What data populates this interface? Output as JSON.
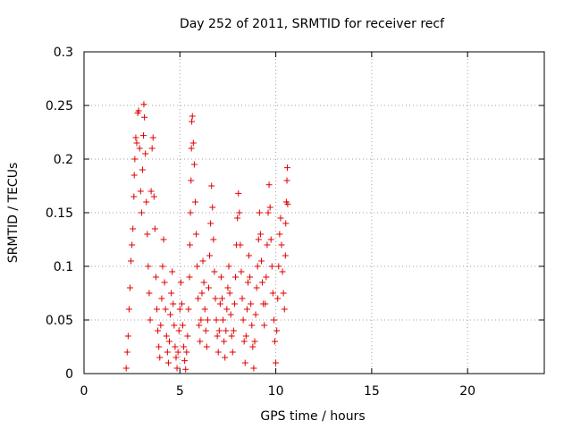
{
  "chart_data": {
    "type": "scatter",
    "title": "Day 252 of 2011, SRMTID for receiver recf",
    "xlabel": "GPS time / hours",
    "ylabel": "SRMTID / TECUs",
    "xlim": [
      0,
      24
    ],
    "ylim": [
      0,
      0.3
    ],
    "xticks": [
      0,
      5,
      10,
      15,
      20
    ],
    "xtick_labels": [
      "0",
      "5",
      "10",
      "15",
      "20"
    ],
    "yticks": [
      0,
      0.05,
      0.1,
      0.15,
      0.2,
      0.25,
      0.3
    ],
    "ytick_labels": [
      "0",
      "0.05",
      "0.1",
      "0.15",
      "0.2",
      "0.25",
      "0.3"
    ],
    "grid": true,
    "legend": "none",
    "marker": "+",
    "series": [
      {
        "color": "#e00000",
        "points": [
          [
            2.2,
            0.005
          ],
          [
            2.25,
            0.02
          ],
          [
            2.3,
            0.035
          ],
          [
            2.35,
            0.06
          ],
          [
            2.4,
            0.08
          ],
          [
            2.45,
            0.105
          ],
          [
            2.5,
            0.12
          ],
          [
            2.55,
            0.135
          ],
          [
            2.6,
            0.165
          ],
          [
            2.62,
            0.185
          ],
          [
            2.65,
            0.2
          ],
          [
            2.7,
            0.22
          ],
          [
            2.75,
            0.215
          ],
          [
            2.8,
            0.243
          ],
          [
            2.85,
            0.245
          ],
          [
            2.9,
            0.21
          ],
          [
            2.95,
            0.17
          ],
          [
            3.0,
            0.15
          ],
          [
            3.05,
            0.19
          ],
          [
            3.1,
            0.222
          ],
          [
            3.12,
            0.251
          ],
          [
            3.15,
            0.239
          ],
          [
            3.2,
            0.205
          ],
          [
            3.25,
            0.16
          ],
          [
            3.3,
            0.13
          ],
          [
            3.35,
            0.1
          ],
          [
            3.4,
            0.075
          ],
          [
            3.45,
            0.05
          ],
          [
            3.5,
            0.17
          ],
          [
            3.55,
            0.21
          ],
          [
            3.6,
            0.22
          ],
          [
            3.65,
            0.165
          ],
          [
            3.7,
            0.135
          ],
          [
            3.75,
            0.09
          ],
          [
            3.8,
            0.06
          ],
          [
            3.85,
            0.04
          ],
          [
            3.9,
            0.025
          ],
          [
            3.95,
            0.015
          ],
          [
            4.0,
            0.045
          ],
          [
            4.05,
            0.07
          ],
          [
            4.1,
            0.1
          ],
          [
            4.15,
            0.125
          ],
          [
            4.2,
            0.085
          ],
          [
            4.25,
            0.06
          ],
          [
            4.3,
            0.035
          ],
          [
            4.35,
            0.02
          ],
          [
            4.4,
            0.01
          ],
          [
            4.45,
            0.03
          ],
          [
            4.5,
            0.055
          ],
          [
            4.55,
            0.075
          ],
          [
            4.6,
            0.095
          ],
          [
            4.65,
            0.065
          ],
          [
            4.7,
            0.045
          ],
          [
            4.75,
            0.025
          ],
          [
            4.8,
            0.015
          ],
          [
            4.85,
            0.005
          ],
          [
            4.9,
            0.02
          ],
          [
            4.95,
            0.04
          ],
          [
            5.0,
            0.06
          ],
          [
            5.05,
            0.085
          ],
          [
            5.1,
            0.065
          ],
          [
            5.15,
            0.045
          ],
          [
            5.2,
            0.025
          ],
          [
            5.25,
            0.012
          ],
          [
            5.3,
            0.004
          ],
          [
            5.35,
            0.02
          ],
          [
            5.4,
            0.035
          ],
          [
            5.45,
            0.06
          ],
          [
            5.5,
            0.09
          ],
          [
            5.52,
            0.12
          ],
          [
            5.55,
            0.15
          ],
          [
            5.58,
            0.18
          ],
          [
            5.6,
            0.21
          ],
          [
            5.62,
            0.235
          ],
          [
            5.65,
            0.24
          ],
          [
            5.7,
            0.215
          ],
          [
            5.75,
            0.195
          ],
          [
            5.8,
            0.16
          ],
          [
            5.85,
            0.13
          ],
          [
            5.9,
            0.1
          ],
          [
            5.95,
            0.07
          ],
          [
            6.0,
            0.045
          ],
          [
            6.05,
            0.03
          ],
          [
            6.1,
            0.05
          ],
          [
            6.15,
            0.075
          ],
          [
            6.2,
            0.105
          ],
          [
            6.25,
            0.085
          ],
          [
            6.3,
            0.06
          ],
          [
            6.35,
            0.04
          ],
          [
            6.4,
            0.025
          ],
          [
            6.45,
            0.05
          ],
          [
            6.5,
            0.08
          ],
          [
            6.55,
            0.11
          ],
          [
            6.6,
            0.14
          ],
          [
            6.65,
            0.175
          ],
          [
            6.7,
            0.155
          ],
          [
            6.75,
            0.125
          ],
          [
            6.8,
            0.095
          ],
          [
            6.85,
            0.07
          ],
          [
            6.9,
            0.05
          ],
          [
            6.95,
            0.035
          ],
          [
            7.0,
            0.02
          ],
          [
            7.05,
            0.04
          ],
          [
            7.1,
            0.065
          ],
          [
            7.15,
            0.09
          ],
          [
            7.2,
            0.07
          ],
          [
            7.25,
            0.05
          ],
          [
            7.3,
            0.03
          ],
          [
            7.35,
            0.015
          ],
          [
            7.4,
            0.04
          ],
          [
            7.45,
            0.06
          ],
          [
            7.5,
            0.08
          ],
          [
            7.55,
            0.1
          ],
          [
            7.6,
            0.075
          ],
          [
            7.65,
            0.055
          ],
          [
            7.7,
            0.035
          ],
          [
            7.75,
            0.02
          ],
          [
            7.8,
            0.04
          ],
          [
            7.85,
            0.065
          ],
          [
            7.9,
            0.09
          ],
          [
            7.95,
            0.12
          ],
          [
            8.0,
            0.145
          ],
          [
            8.05,
            0.168
          ],
          [
            8.1,
            0.15
          ],
          [
            8.15,
            0.12
          ],
          [
            8.2,
            0.095
          ],
          [
            8.25,
            0.07
          ],
          [
            8.3,
            0.05
          ],
          [
            8.35,
            0.03
          ],
          [
            8.4,
            0.01
          ],
          [
            8.45,
            0.035
          ],
          [
            8.5,
            0.06
          ],
          [
            8.55,
            0.085
          ],
          [
            8.6,
            0.11
          ],
          [
            8.65,
            0.09
          ],
          [
            8.7,
            0.065
          ],
          [
            8.75,
            0.045
          ],
          [
            8.8,
            0.025
          ],
          [
            8.85,
            0.005
          ],
          [
            8.9,
            0.03
          ],
          [
            8.95,
            0.055
          ],
          [
            9.0,
            0.08
          ],
          [
            9.05,
            0.1
          ],
          [
            9.1,
            0.125
          ],
          [
            9.15,
            0.15
          ],
          [
            9.2,
            0.13
          ],
          [
            9.25,
            0.105
          ],
          [
            9.3,
            0.085
          ],
          [
            9.35,
            0.065
          ],
          [
            9.4,
            0.045
          ],
          [
            9.45,
            0.065
          ],
          [
            9.5,
            0.09
          ],
          [
            9.55,
            0.12
          ],
          [
            9.6,
            0.15
          ],
          [
            9.65,
            0.176
          ],
          [
            9.7,
            0.155
          ],
          [
            9.75,
            0.125
          ],
          [
            9.8,
            0.1
          ],
          [
            9.85,
            0.075
          ],
          [
            9.9,
            0.05
          ],
          [
            9.95,
            0.03
          ],
          [
            10.0,
            0.01
          ],
          [
            10.05,
            0.04
          ],
          [
            10.1,
            0.07
          ],
          [
            10.15,
            0.1
          ],
          [
            10.2,
            0.13
          ],
          [
            10.25,
            0.145
          ],
          [
            10.3,
            0.12
          ],
          [
            10.35,
            0.095
          ],
          [
            10.4,
            0.075
          ],
          [
            10.45,
            0.06
          ],
          [
            10.5,
            0.11
          ],
          [
            10.52,
            0.14
          ],
          [
            10.55,
            0.16
          ],
          [
            10.58,
            0.18
          ],
          [
            10.6,
            0.192
          ],
          [
            10.62,
            0.158
          ]
        ]
      }
    ]
  }
}
